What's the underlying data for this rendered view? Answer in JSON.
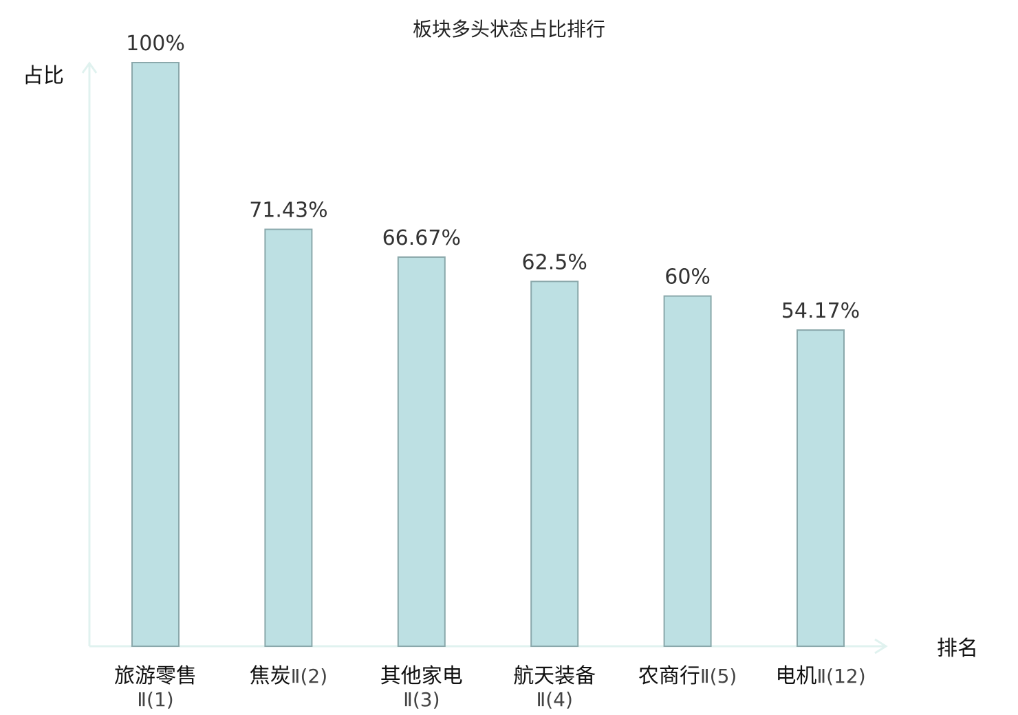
{
  "chart_data": {
    "type": "bar",
    "title": "板块多头状态占比排行",
    "ylabel": "占比",
    "xlabel": "排名",
    "ylim": [
      0,
      100
    ],
    "grid": false,
    "categories": [
      {
        "name": "旅游零售",
        "suffix": "Ⅱ(1)",
        "highlight": false
      },
      {
        "name": "焦炭",
        "suffix": "Ⅱ(2)",
        "highlight": false
      },
      {
        "name": "其他家电",
        "suffix": "Ⅱ(3)",
        "highlight": false
      },
      {
        "name": "航天装备",
        "suffix": "Ⅱ(4)",
        "highlight": false
      },
      {
        "name": "农商行",
        "suffix": "Ⅱ(5)",
        "highlight": false
      },
      {
        "name": "电机",
        "suffix": "Ⅱ(12)",
        "highlight": true
      }
    ],
    "values": [
      100,
      71.43,
      66.67,
      62.5,
      60,
      54.17
    ],
    "value_labels": [
      "100%",
      "71.43%",
      "66.67%",
      "62.5%",
      "60%",
      "54.17%"
    ]
  },
  "colors": {
    "bar_fill": "#bde0e3",
    "bar_stroke": "#8aa8ab",
    "axis": "#e0f2ef",
    "highlight_text": "#e8232a"
  }
}
